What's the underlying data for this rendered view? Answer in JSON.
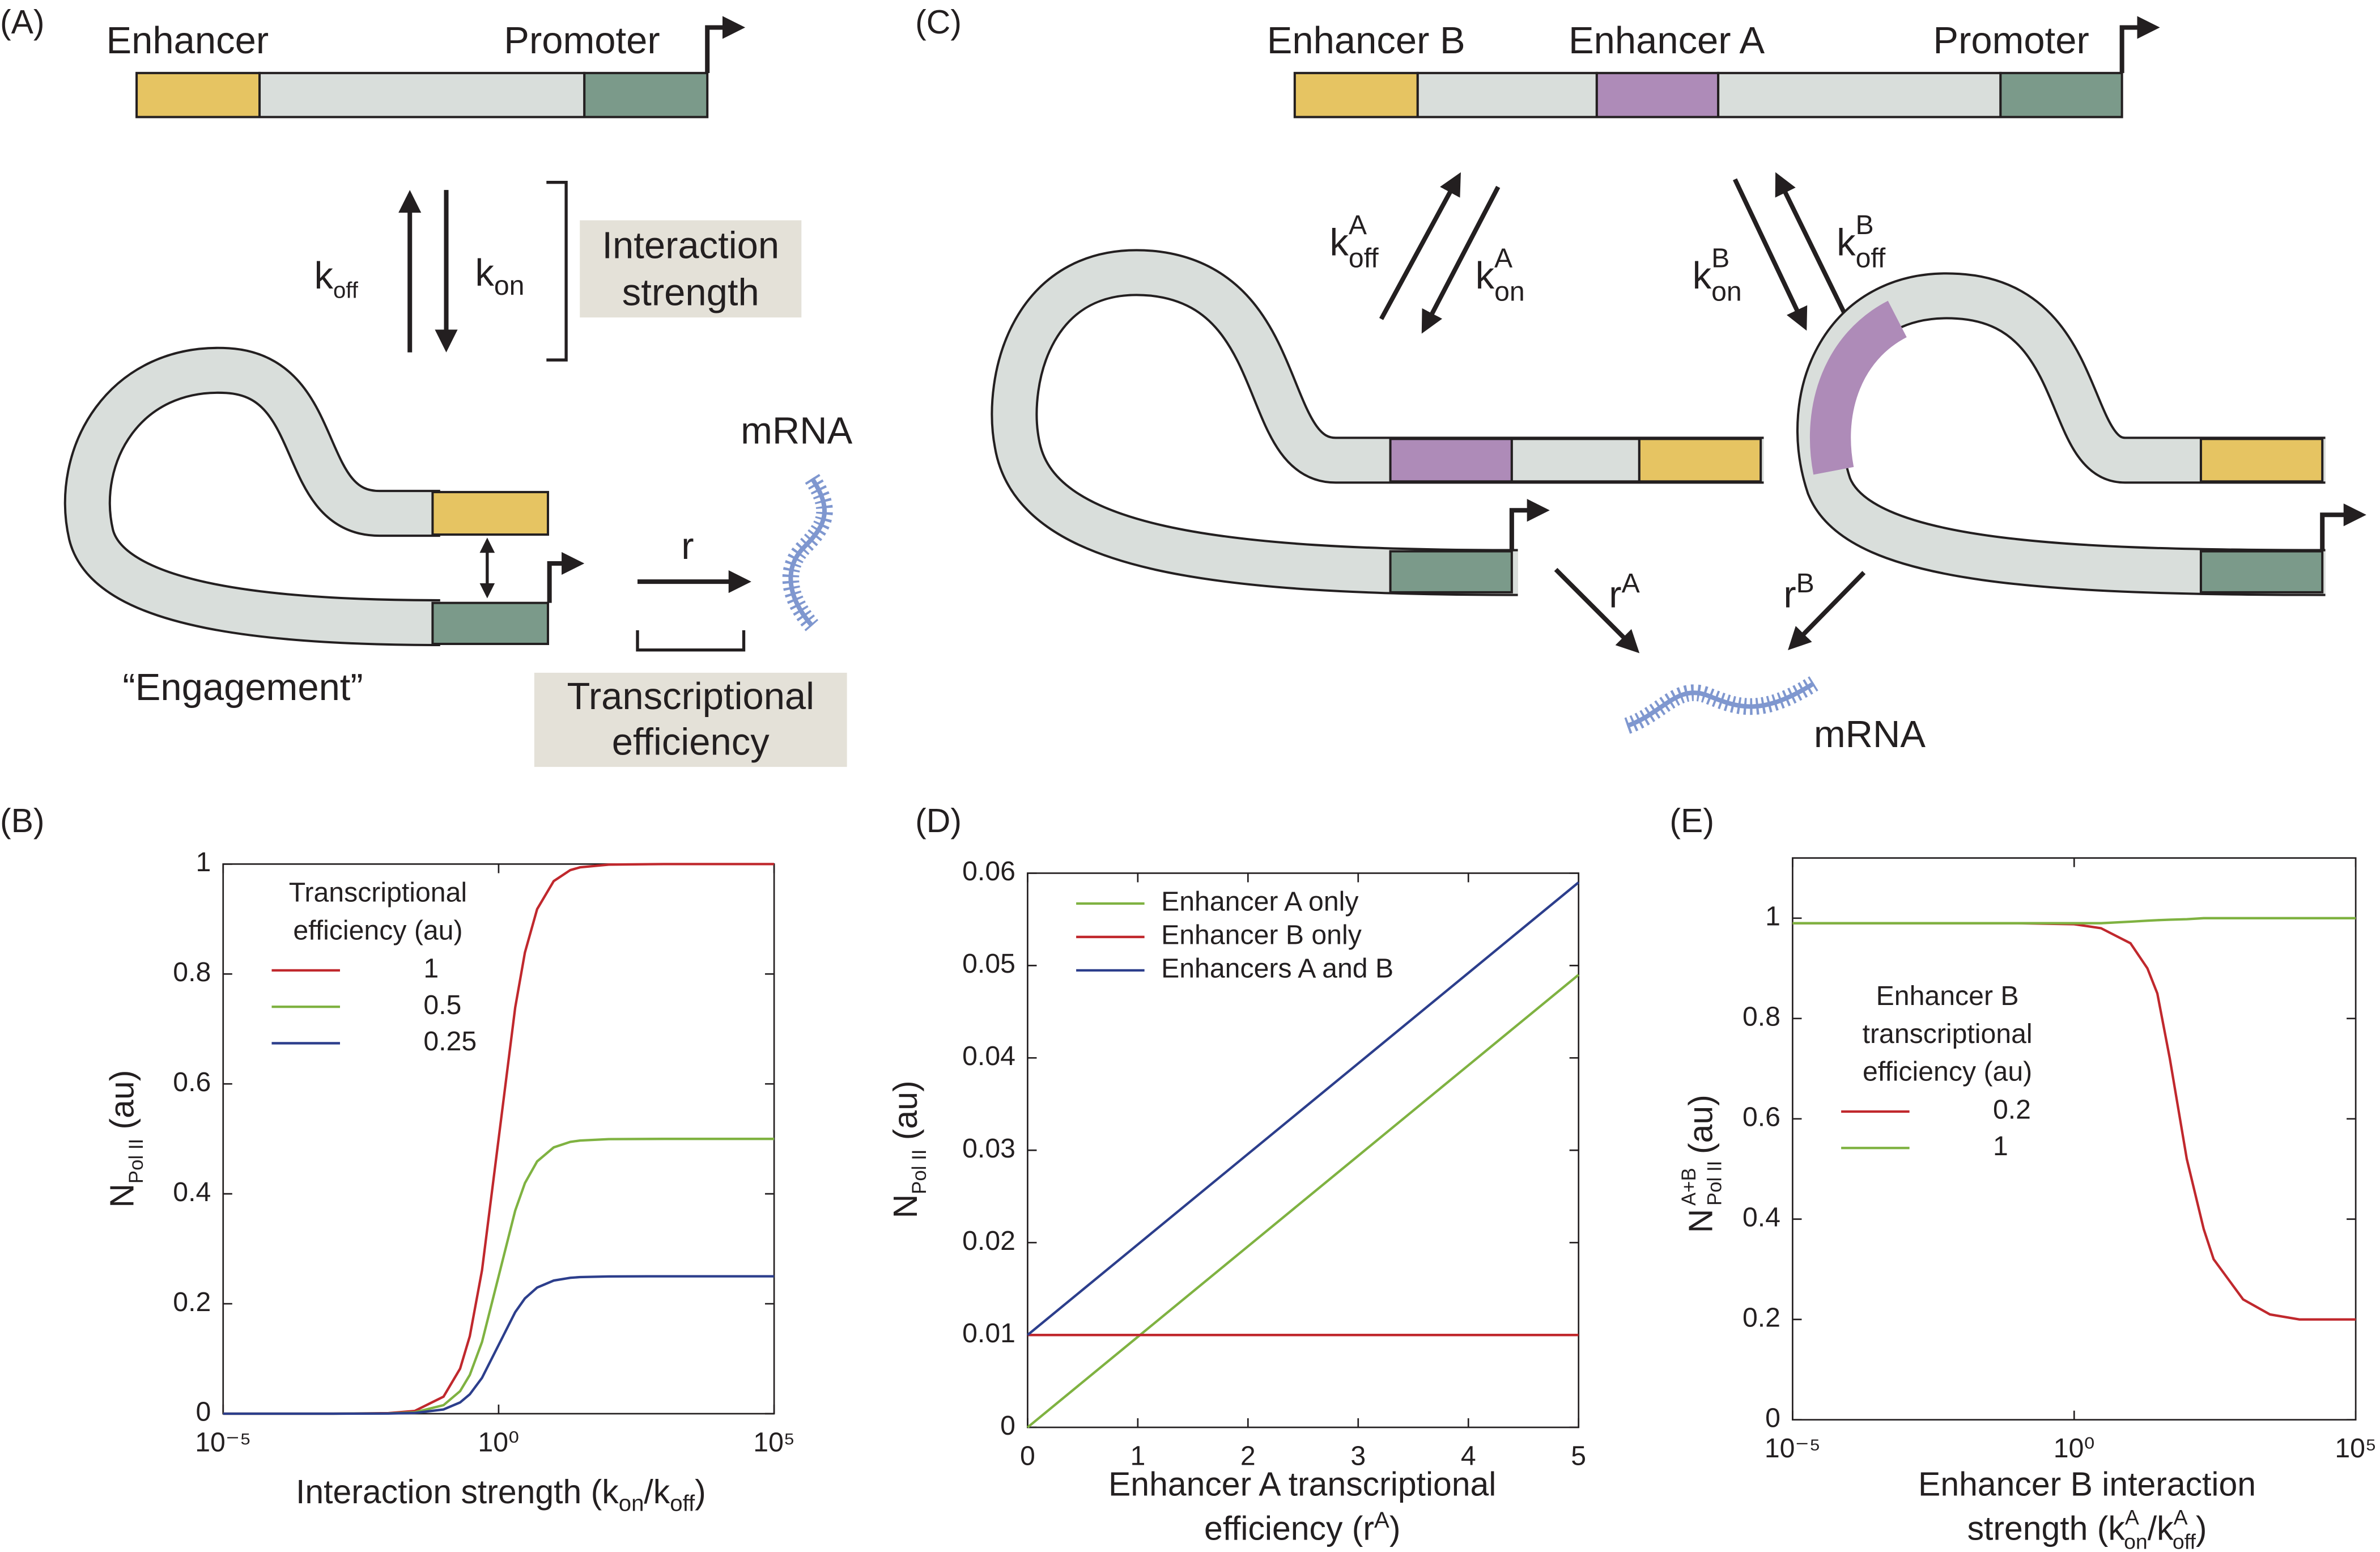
{
  "panel_labels": [
    "(A)",
    "(B)",
    "(C)",
    "(D)",
    "(E)"
  ],
  "diagram_a": {
    "enhancer": "Enhancer",
    "promoter": "Promoter",
    "k_off": {
      "base": "k",
      "sub": "off"
    },
    "k_on": {
      "base": "k",
      "sub": "on"
    },
    "interaction_strength": [
      "Interaction",
      "strength"
    ],
    "mrna": "mRNA",
    "r": "r",
    "engagement": "“Engagement”",
    "transcriptional_efficiency": [
      "Transcriptional",
      "efficiency"
    ]
  },
  "diagram_c": {
    "enhancer_b": "Enhancer B",
    "enhancer_a": "Enhancer A",
    "promoter": "Promoter",
    "k_off_a": {
      "base": "k",
      "sup": "A",
      "sub": "off"
    },
    "k_on_a": {
      "base": "k",
      "sup": "A",
      "sub": "on"
    },
    "k_on_b": {
      "base": "k",
      "sup": "B",
      "sub": "on"
    },
    "k_off_b": {
      "base": "k",
      "sup": "B",
      "sub": "off"
    },
    "r_a": {
      "base": "r",
      "sup": "A"
    },
    "r_b": {
      "base": "r",
      "sup": "B"
    },
    "mrna": "mRNA"
  },
  "chart_data": [
    {
      "type": "line",
      "xscale": "log",
      "x": [
        1e-05,
        0.0001,
        0.001,
        0.01,
        0.03,
        0.1,
        0.2,
        0.3,
        0.5,
        1,
        2,
        3,
        5,
        10,
        20,
        30,
        100,
        1000,
        10000,
        100000
      ],
      "xlim": [
        1e-05,
        100000
      ],
      "xticks": [
        {
          "value": 1e-05,
          "label": "10⁻⁵"
        },
        {
          "value": 1,
          "label": "10⁰"
        },
        {
          "value": 100000,
          "label": "10⁵"
        }
      ],
      "ylim": [
        0,
        1
      ],
      "yticks": [
        0,
        0.2,
        0.4,
        0.6,
        0.8,
        1
      ],
      "xlabel": [
        "Interaction strength (k",
        "on",
        "/k",
        "off",
        ")"
      ],
      "ylabel": [
        "N",
        "Pol II",
        " (au)"
      ],
      "legend": "upper left",
      "legend_title": [
        "Transcriptional",
        "efficiency (au)"
      ],
      "series": [
        {
          "name": "1",
          "color": "#c0282d",
          "values": [
            0,
            0,
            0,
            0.001,
            0.005,
            0.031,
            0.082,
            0.141,
            0.261,
            0.5,
            0.739,
            0.839,
            0.918,
            0.969,
            0.989,
            0.994,
            0.999,
            1,
            1,
            1
          ]
        },
        {
          "name": "0.5",
          "color": "#7fb241",
          "values": [
            0,
            0,
            0,
            0.0005,
            0.0025,
            0.0155,
            0.041,
            0.0705,
            0.1305,
            0.25,
            0.3695,
            0.4195,
            0.459,
            0.4845,
            0.4945,
            0.497,
            0.4995,
            0.5,
            0.5,
            0.5
          ]
        },
        {
          "name": "0.25",
          "color": "#2c3e8c",
          "values": [
            0,
            0,
            0,
            0.00025,
            0.00125,
            0.00775,
            0.0205,
            0.03525,
            0.06525,
            0.125,
            0.18475,
            0.20975,
            0.2295,
            0.24225,
            0.24725,
            0.2485,
            0.24975,
            0.25,
            0.25,
            0.25
          ]
        }
      ]
    },
    {
      "type": "line",
      "xscale": "linear",
      "x": [
        0,
        1,
        2,
        3,
        4,
        5
      ],
      "xlim": [
        0,
        5
      ],
      "xticks": [
        0,
        1,
        2,
        3,
        4,
        5
      ],
      "ylim": [
        0,
        0.06
      ],
      "yticks": [
        0,
        0.01,
        0.02,
        0.03,
        0.04,
        0.05,
        0.06
      ],
      "xlabel": [
        "Enhancer A transcriptional",
        "efficiency (r",
        "A",
        ")"
      ],
      "ylabel": [
        "N",
        "Pol II",
        " (au)"
      ],
      "legend": "upper left",
      "series": [
        {
          "name": "Enhancer A only",
          "color": "#7fb241",
          "values": [
            0,
            0.0098,
            0.0196,
            0.0294,
            0.0392,
            0.049
          ]
        },
        {
          "name": "Enhancer B only",
          "color": "#c0282d",
          "values": [
            0.01,
            0.01,
            0.01,
            0.01,
            0.01,
            0.01
          ]
        },
        {
          "name": "Enhancers A and B",
          "color": "#2c3e8c",
          "values": [
            0.01,
            0.0198,
            0.0296,
            0.0394,
            0.0492,
            0.059
          ]
        }
      ]
    },
    {
      "type": "line",
      "xscale": "log",
      "x": [
        1e-05,
        0.0001,
        0.001,
        0.01,
        0.1,
        1,
        3,
        10,
        20,
        30,
        50,
        100,
        200,
        300,
        1000,
        3000,
        10000,
        100000
      ],
      "xlim": [
        1e-05,
        100000
      ],
      "xticks": [
        {
          "value": 1e-05,
          "label": "10⁻⁵"
        },
        {
          "value": 1,
          "label": "10⁰"
        },
        {
          "value": 100000,
          "label": "10⁵"
        }
      ],
      "ylim": [
        0,
        1.12
      ],
      "yticks": [
        0,
        0.2,
        0.4,
        0.6,
        0.8,
        1
      ],
      "xlabel": [
        "Enhancer B interaction",
        "strength (k",
        "A",
        "on",
        "/k",
        "A",
        "off",
        ")"
      ],
      "ylabel": [
        "N",
        "A+B",
        "Pol II",
        " (au)"
      ],
      "legend": "center left",
      "legend_title": [
        "Enhancer B",
        "transcriptional",
        "efficiency (au)"
      ],
      "series": [
        {
          "name": "0.2",
          "color": "#c0282d",
          "values": [
            0.99,
            0.99,
            0.99,
            0.99,
            0.99,
            0.988,
            0.98,
            0.95,
            0.9,
            0.85,
            0.72,
            0.52,
            0.38,
            0.32,
            0.24,
            0.21,
            0.2,
            0.2
          ]
        },
        {
          "name": "1",
          "color": "#7fb241",
          "values": [
            0.99,
            0.99,
            0.99,
            0.99,
            0.99,
            0.99,
            0.99,
            0.993,
            0.995,
            0.996,
            0.997,
            0.998,
            1,
            1,
            1,
            1,
            1,
            1
          ]
        }
      ]
    }
  ]
}
